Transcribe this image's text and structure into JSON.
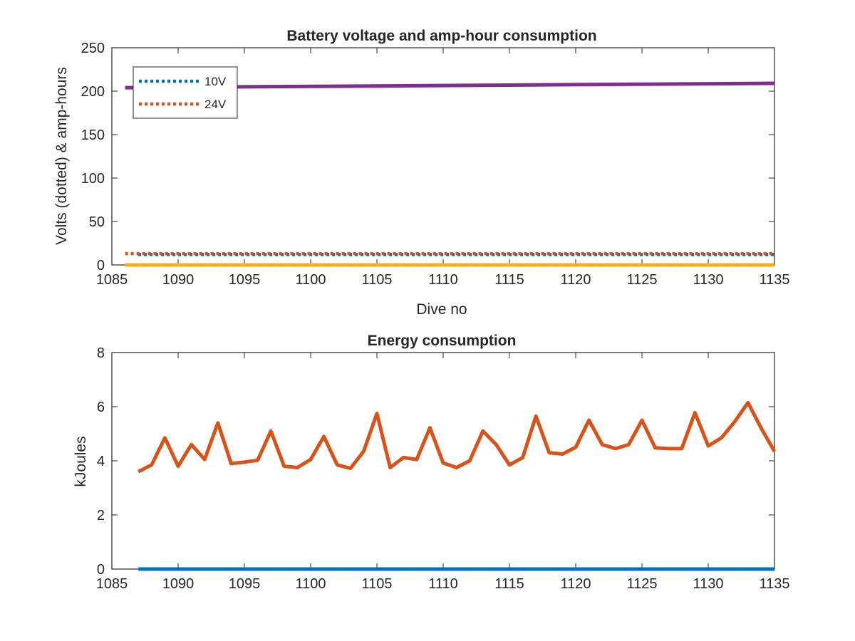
{
  "chart_data": [
    {
      "type": "line",
      "title": "Battery voltage and amp-hour consumption",
      "xlabel": "Dive no",
      "ylabel": "Volts (dotted) & amp-hours",
      "xlim": [
        1085,
        1135
      ],
      "ylim": [
        0,
        250
      ],
      "xticks": [
        1085,
        1090,
        1095,
        1100,
        1105,
        1110,
        1115,
        1120,
        1125,
        1130,
        1135
      ],
      "yticks": [
        0,
        50,
        100,
        150,
        200,
        250
      ],
      "grid": false,
      "legend": {
        "placement": "top-left",
        "entries": [
          "10V",
          "24V"
        ]
      },
      "series": [
        {
          "name": "10V",
          "style": "dotted",
          "color": "#0072BD",
          "x": [
            1087,
            1135
          ],
          "y": [
            12,
            12
          ]
        },
        {
          "name": "24V",
          "style": "dotted",
          "color": "#D95319",
          "x": [
            1086,
            1135
          ],
          "y": [
            13,
            13
          ]
        },
        {
          "style": "solid",
          "color": "#7E2F8E",
          "x": [
            1086,
            1095,
            1105,
            1115,
            1125,
            1135
          ],
          "y": [
            204,
            205,
            206,
            207,
            208,
            209
          ]
        },
        {
          "style": "solid",
          "color": "#EDB120",
          "x": [
            1086,
            1135
          ],
          "y": [
            0,
            0
          ]
        }
      ]
    },
    {
      "type": "line",
      "title": "Energy consumption",
      "xlabel": "",
      "ylabel": "kJoules",
      "xlim": [
        1085,
        1135
      ],
      "ylim": [
        0,
        8
      ],
      "xticks": [
        1085,
        1090,
        1095,
        1100,
        1105,
        1110,
        1115,
        1120,
        1125,
        1130,
        1135
      ],
      "yticks": [
        0,
        2,
        4,
        6,
        8
      ],
      "grid": false,
      "series": [
        {
          "style": "solid",
          "color": "#0072BD",
          "x": [
            1087,
            1135
          ],
          "y": [
            0,
            0
          ]
        },
        {
          "style": "solid",
          "color": "#D95319",
          "x": [
            1087,
            1088,
            1089,
            1090,
            1091,
            1092,
            1093,
            1094,
            1095,
            1096,
            1097,
            1098,
            1099,
            1100,
            1101,
            1102,
            1103,
            1104,
            1105,
            1106,
            1107,
            1108,
            1109,
            1110,
            1111,
            1112,
            1113,
            1114,
            1115,
            1116,
            1117,
            1118,
            1119,
            1120,
            1121,
            1122,
            1123,
            1124,
            1125,
            1126,
            1127,
            1128,
            1129,
            1130,
            1131,
            1132,
            1133,
            1134,
            1135
          ],
          "y": [
            3.6,
            3.85,
            4.85,
            3.8,
            4.6,
            4.05,
            5.4,
            3.9,
            3.95,
            4.02,
            5.1,
            3.8,
            3.75,
            4.05,
            4.9,
            3.85,
            3.72,
            4.35,
            5.75,
            3.75,
            4.12,
            4.05,
            5.22,
            3.92,
            3.75,
            4.0,
            5.1,
            4.6,
            3.85,
            4.12,
            5.65,
            4.3,
            4.25,
            4.5,
            5.5,
            4.6,
            4.45,
            4.6,
            5.5,
            4.48,
            4.45,
            4.45,
            5.78,
            4.55,
            4.85,
            5.45,
            6.15,
            5.2,
            4.35
          ]
        }
      ]
    }
  ]
}
